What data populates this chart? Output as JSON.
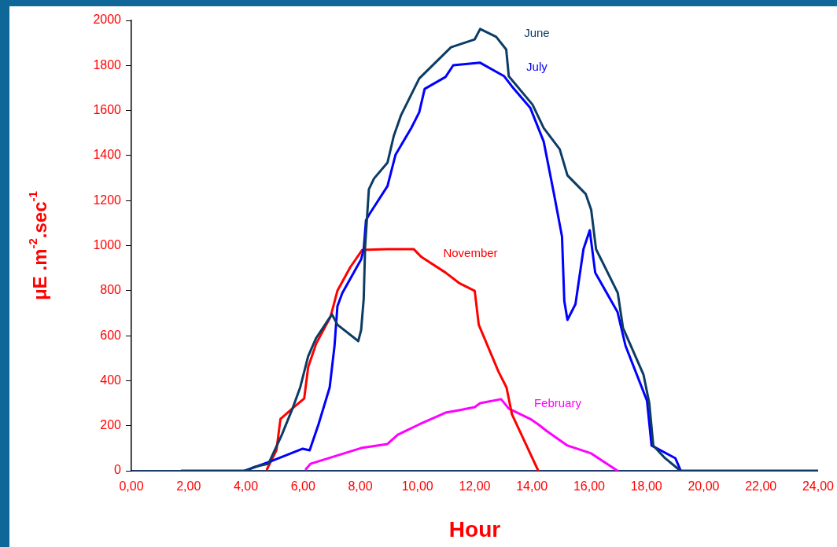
{
  "chart_data": {
    "type": "line",
    "xlabel": "Hour",
    "ylabel": "μE .m$^{-2}$.sec$^{-1}$",
    "xlim": [
      0,
      24
    ],
    "ylim": [
      0,
      2000
    ],
    "xticks": [
      {
        "value": 0,
        "label": "0,00"
      },
      {
        "value": 2,
        "label": "2,00"
      },
      {
        "value": 4,
        "label": "4,00"
      },
      {
        "value": 6,
        "label": "6,00"
      },
      {
        "value": 8,
        "label": "8,00"
      },
      {
        "value": 10,
        "label": "10,00"
      },
      {
        "value": 12,
        "label": "12,00"
      },
      {
        "value": 14,
        "label": "14,00"
      },
      {
        "value": 16,
        "label": "16,00"
      },
      {
        "value": 18,
        "label": "18,00"
      },
      {
        "value": 20,
        "label": "20,00"
      },
      {
        "value": 22,
        "label": "22,00"
      },
      {
        "value": 24,
        "label": "24,00"
      }
    ],
    "yticks": [
      0,
      200,
      400,
      600,
      800,
      1000,
      1200,
      1400,
      1600,
      1800,
      2000
    ],
    "series": [
      {
        "name": "June",
        "color": "#0c3c64",
        "x": [
          1.75,
          4.0,
          4.3,
          4.79,
          5.26,
          5.63,
          5.9,
          6.18,
          6.46,
          7.01,
          7.2,
          7.93,
          8.03,
          8.12,
          8.17,
          8.3,
          8.48,
          8.95,
          9.17,
          9.42,
          10.06,
          11.17,
          12.0,
          12.19,
          12.75,
          13.1,
          13.19,
          14.02,
          14.41,
          14.97,
          15.24,
          15.88,
          16.07,
          16.24,
          17.0,
          17.18,
          17.9,
          18.1,
          18.24,
          18.65,
          19.12,
          19.2,
          24
        ],
        "values": [
          0,
          0,
          17,
          31,
          160,
          276,
          370,
          509,
          590,
          695,
          649,
          576,
          625,
          764,
          998,
          1250,
          1298,
          1368,
          1487,
          1578,
          1742,
          1881,
          1916,
          1962,
          1927,
          1871,
          1752,
          1626,
          1522,
          1428,
          1312,
          1229,
          1159,
          984,
          789,
          635,
          426,
          300,
          112,
          56,
          7,
          0,
          0
        ]
      },
      {
        "name": "July",
        "color": "#0000ff",
        "x": [
          3.96,
          4.88,
          5.99,
          6.23,
          6.54,
          6.93,
          7.1,
          7.2,
          7.37,
          8.03,
          8.12,
          8.2,
          8.31,
          8.95,
          9.23,
          9.78,
          10.06,
          10.25,
          10.98,
          11.25,
          12.19,
          13.03,
          13.3,
          13.94,
          14.41,
          14.77,
          15.05,
          15.13,
          15.24,
          15.52,
          15.8,
          16.02,
          16.21,
          16.99,
          17.27,
          18.02,
          18.18,
          19.01,
          19.2
        ],
        "values": [
          0,
          42,
          98,
          91,
          206,
          370,
          555,
          730,
          789,
          939,
          984,
          1113,
          1138,
          1264,
          1403,
          1522,
          1592,
          1696,
          1749,
          1801,
          1812,
          1752,
          1707,
          1612,
          1462,
          1229,
          1040,
          754,
          670,
          740,
          984,
          1068,
          880,
          705,
          555,
          311,
          112,
          56,
          0
        ]
      },
      {
        "name": "November",
        "color": "#ff0000",
        "x": [
          4.74,
          5.07,
          5.21,
          5.71,
          6.04,
          6.18,
          6.46,
          6.96,
          7.2,
          7.65,
          8.07,
          8.95,
          9.87,
          10.14,
          10.98,
          11.45,
          12.0,
          12.14,
          12.83,
          13.11,
          13.3,
          14.22
        ],
        "values": [
          7,
          91,
          230,
          286,
          321,
          461,
          565,
          684,
          799,
          904,
          981,
          984,
          984,
          949,
          880,
          834,
          799,
          649,
          440,
          370,
          251,
          0
        ]
      },
      {
        "name": "February",
        "color": "#ff00ff",
        "x": [
          6.1,
          6.26,
          8.03,
          8.95,
          9.31,
          10.06,
          10.98,
          11.45,
          12.0,
          12.19,
          12.92,
          13.19,
          13.94,
          14.22,
          14.5,
          15.24,
          16.07,
          16.99
        ],
        "values": [
          7,
          31,
          101,
          119,
          160,
          206,
          258,
          269,
          283,
          300,
          318,
          276,
          230,
          206,
          178,
          112,
          77,
          0
        ]
      }
    ]
  }
}
